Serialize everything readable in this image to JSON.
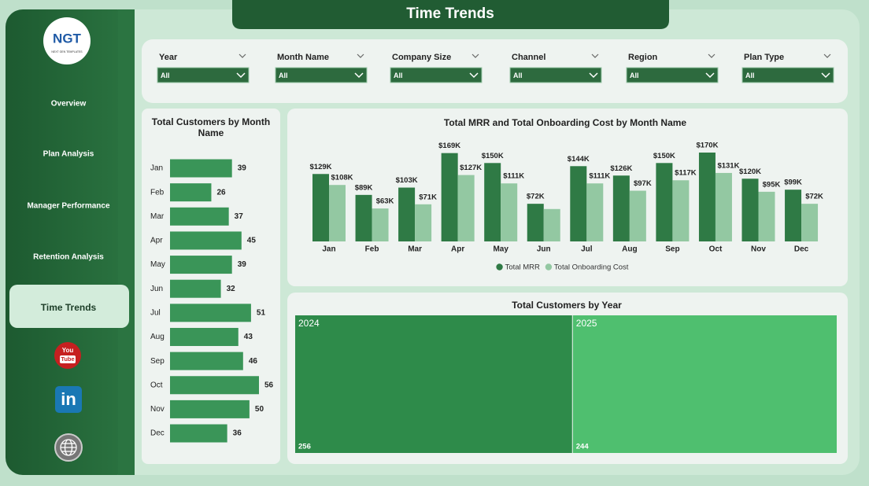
{
  "header": {
    "title": "Time Trends"
  },
  "sidebar": {
    "logo": {
      "text": "NGT",
      "tagline": "NEXT GEN TEMPLATES"
    },
    "nav": [
      "Overview",
      "Plan Analysis",
      "Manager Performance",
      "Retention Analysis",
      "Time Trends"
    ],
    "active": 4,
    "icons": {
      "youtube": [
        "You",
        "Tube"
      ],
      "linkedin": "in"
    }
  },
  "filters": [
    {
      "label": "Year",
      "value": "All"
    },
    {
      "label": "Month Name",
      "value": "All"
    },
    {
      "label": "Company Size",
      "value": "All"
    },
    {
      "label": "Channel",
      "value": "All"
    },
    {
      "label": "Region",
      "value": "All"
    },
    {
      "label": "Plan Type",
      "value": "All"
    }
  ],
  "chart_data": [
    {
      "type": "bar",
      "orientation": "horizontal",
      "title": "Total Customers by Month Name",
      "categories": [
        "Jan",
        "Feb",
        "Mar",
        "Apr",
        "May",
        "Jun",
        "Jul",
        "Aug",
        "Sep",
        "Oct",
        "Nov",
        "Dec"
      ],
      "values": [
        39,
        26,
        37,
        45,
        39,
        32,
        51,
        43,
        46,
        56,
        50,
        36
      ],
      "color": "#3a9558"
    },
    {
      "type": "bar",
      "orientation": "vertical",
      "title": "Total MRR and Total Onboarding Cost by Month Name",
      "categories": [
        "Jan",
        "Feb",
        "Mar",
        "Apr",
        "May",
        "Jun",
        "Jul",
        "Aug",
        "Sep",
        "Oct",
        "Nov",
        "Dec"
      ],
      "series": [
        {
          "name": "Total MRR",
          "color": "#2f7a45",
          "values": [
            129000,
            89000,
            103000,
            169000,
            150000,
            72000,
            144000,
            126000,
            150000,
            170000,
            120000,
            99000
          ],
          "value_labels": [
            "$129K",
            "$89K",
            "$103K",
            "$169K",
            "$150K",
            "$72K",
            "$144K",
            "$126K",
            "$150K",
            "$170K",
            "$120K",
            "$99K"
          ]
        },
        {
          "name": "Total Onboarding Cost",
          "color": "#93c8a2",
          "values": [
            108000,
            63000,
            71000,
            127000,
            111000,
            62000,
            111000,
            97000,
            117000,
            131000,
            95000,
            72000
          ],
          "value_labels": [
            "$108K",
            "$63K",
            "$71K",
            "$127K",
            "$111K",
            null,
            "$111K",
            "$97K",
            "$117K",
            "$131K",
            "$95K",
            "$72K"
          ]
        }
      ],
      "legend": "bottom"
    },
    {
      "type": "treemap",
      "title": "Total Customers by Year",
      "categories": [
        "2024",
        "2025"
      ],
      "values": [
        256,
        244
      ],
      "colors": [
        "#2e8b4a",
        "#4fbf6f"
      ]
    }
  ]
}
